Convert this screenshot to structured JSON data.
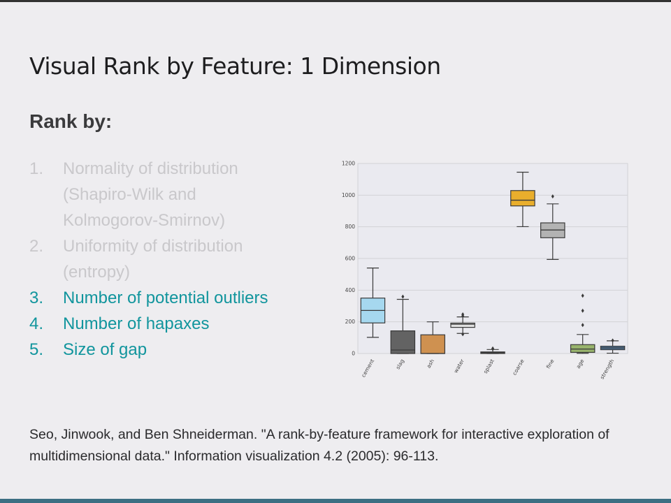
{
  "slide": {
    "title": "Visual Rank by Feature: 1 Dimension",
    "subheading": "Rank by:",
    "items": [
      {
        "num": "1.",
        "lines": [
          "Normality of distribution",
          "(Shapiro-Wilk and",
          "Kolmogorov-Smirnov)"
        ],
        "state": "faded"
      },
      {
        "num": "2.",
        "lines": [
          "Uniformity of distribution",
          "(entropy)"
        ],
        "state": "faded"
      },
      {
        "num": "3.",
        "lines": [
          "Number of potential outliers"
        ],
        "state": "active"
      },
      {
        "num": "4.",
        "lines": [
          "Number of hapaxes"
        ],
        "state": "active"
      },
      {
        "num": "5.",
        "lines": [
          "Size of gap"
        ],
        "state": "active"
      }
    ],
    "citation": "Seo, Jinwook, and Ben Shneiderman. \"A rank-by-feature framework for interactive exploration of multidimensional data.\" Information visualization 4.2 (2005): 96-113.",
    "colors": {
      "faded_text": "#c9c8cb",
      "active_text": "#11959d",
      "background": "#eeedf0",
      "accent_bar": "#3c6f83"
    }
  },
  "chart_data": {
    "type": "box",
    "title": "",
    "xlabel": "",
    "ylabel": "",
    "ylim": [
      0,
      1200
    ],
    "yticks": [
      0,
      200,
      400,
      600,
      800,
      1000,
      1200
    ],
    "grid": true,
    "categories": [
      "cement",
      "slag",
      "ash",
      "water",
      "splast",
      "coarse",
      "fine",
      "age",
      "strength"
    ],
    "boxes": [
      {
        "name": "cement",
        "whisker_low": 102,
        "q1": 193,
        "median": 272,
        "q3": 350,
        "whisker_high": 540,
        "outliers": [],
        "color": "#a6d8ef"
      },
      {
        "name": "slag",
        "whisker_low": 0,
        "q1": 0,
        "median": 22,
        "q3": 143,
        "whisker_high": 342,
        "outliers": [
          359
        ],
        "color": "#636363"
      },
      {
        "name": "ash",
        "whisker_low": 0,
        "q1": 0,
        "median": 0,
        "q3": 118,
        "whisker_high": 200,
        "outliers": [],
        "color": "#cf9150"
      },
      {
        "name": "water",
        "whisker_low": 127,
        "q1": 165,
        "median": 185,
        "q3": 192,
        "whisker_high": 231,
        "outliers": [
          122,
          237,
          247
        ],
        "color": "#e2e2e2"
      },
      {
        "name": "splast",
        "whisker_low": 0,
        "q1": 0,
        "median": 6,
        "q3": 10,
        "whisker_high": 25,
        "outliers": [
          28,
          32
        ],
        "color": "#444444"
      },
      {
        "name": "coarse",
        "whisker_low": 801,
        "q1": 932,
        "median": 968,
        "q3": 1029,
        "whisker_high": 1145,
        "outliers": [],
        "color": "#e9ae2c"
      },
      {
        "name": "fine",
        "whisker_low": 594,
        "q1": 731,
        "median": 780,
        "q3": 825,
        "whisker_high": 945,
        "outliers": [
          992
        ],
        "color": "#b3b3b3"
      },
      {
        "name": "age",
        "whisker_low": 1,
        "q1": 7,
        "median": 28,
        "q3": 56,
        "whisker_high": 120,
        "outliers": [
          180,
          270,
          365
        ],
        "color": "#98b36d"
      },
      {
        "name": "strength",
        "whisker_low": 2,
        "q1": 24,
        "median": 35,
        "q3": 46,
        "whisker_high": 80,
        "outliers": [
          82
        ],
        "color": "#507aa5"
      }
    ]
  }
}
